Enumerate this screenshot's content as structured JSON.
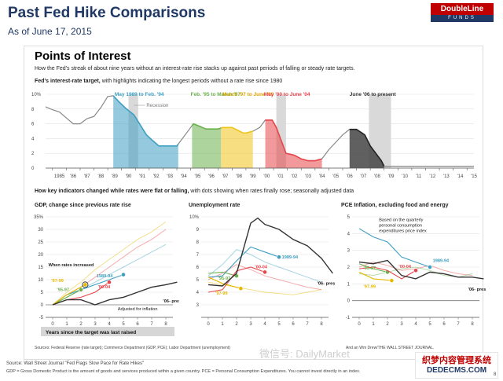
{
  "header": {
    "title": "Past Fed Hike Comparisons",
    "subtitle": "As of June 17, 2015",
    "logo_top": "DoubleLine",
    "logo_bottom": "FUNDS"
  },
  "panel": {
    "heading": "Points of Interest",
    "subheading": "How the Fed's streak of about nine years without an interest-rate rise stacks up against past periods of falling or steady rate targets.",
    "fed_heading_bold": "Fed's interest-rate target,",
    "fed_heading_rest": " with highlights indicating the longest periods without a rate rise since 1980",
    "indicators_heading_bold": "How key indicators changed while rates were flat or falling,",
    "indicators_heading_rest": " with dots showing when rates finally rose; seasonally adjusted data",
    "sources": "Sources: Federal Reserve (rate target); Commerce Department (GDP, PCE); Labor Department (unemployment)",
    "credit": "And an Wm Drew/THE WALL STREET JOURNAL."
  },
  "footer": {
    "source": "Source: Wall Street Journal \"Fed Flags Slow Pace for Rate Hikes\"",
    "note": "GDP = Gross Domestic Product is the amount of goods and services produced within a given country. PCE = Personal Consumption Expenditures. You cannot invest directly in an index.",
    "page": "8"
  },
  "watermark": "微信号: DailyMarket",
  "stamp": {
    "line1": "织梦内容管理系统",
    "line2": "DEDECMS.COM"
  },
  "colors": {
    "may89": "#3e9fc2",
    "feb95": "#6ab04c",
    "mar97": "#f0c419",
    "may00": "#e8454a",
    "jun06": "#444444",
    "recession": "#d9d9d9",
    "fed_line": "#888888"
  },
  "chart_data": [
    {
      "type": "line",
      "title": "",
      "ylabel": "",
      "ylim": [
        0,
        10
      ],
      "yticks": [
        "10%",
        "8",
        "6",
        "4",
        "2",
        "0"
      ],
      "xticks": [
        "1985",
        "'86",
        "'87",
        "'88",
        "'89",
        "'90",
        "'91",
        "'92",
        "'93",
        "'94",
        "'95",
        "'96",
        "'97",
        "'98",
        "'99",
        "'00",
        "'01",
        "'02",
        "'03",
        "'04",
        "'05",
        "'06",
        "'07",
        "'08",
        "'09",
        "'10",
        "'11",
        "'12",
        "'13",
        "'14",
        "'15"
      ],
      "annotations": {
        "recession": "Recession",
        "may89": "May 1989 to Feb. '94",
        "feb95": "Feb. '95 to March '97",
        "mar97": "March '97 to June '99",
        "may00": "May '00 to June '04",
        "jun06": "June '06 to present"
      },
      "series": [
        {
          "x": [
            1984.5,
            1985.0,
            1985.5,
            1986.0,
            1986.5,
            1987.0,
            1987.5,
            1988.0,
            1988.5,
            1989.0,
            1989.4,
            1989.8,
            1990.3,
            1990.9,
            1991.3,
            1991.8,
            1992.2,
            1992.7,
            1993.5,
            1994.0,
            1994.2,
            1994.6,
            1995.0,
            1995.2,
            1995.6,
            1996.1,
            1996.5,
            1997.0,
            1997.3,
            1998.0,
            1998.8,
            1999.0,
            1999.5,
            2000.0,
            2000.4,
            2000.9,
            2001.2,
            2001.5,
            2001.9,
            2002.5,
            2003.0,
            2003.5,
            2004.0,
            2004.5,
            2005.0,
            2005.5,
            2006.0,
            2006.5,
            2007.0,
            2007.6,
            2008.0,
            2008.3,
            2008.8,
            2009.0,
            2015.5
          ],
          "values": [
            8.3,
            7.9,
            7.6,
            6.8,
            6.0,
            6.0,
            6.7,
            7.0,
            8.2,
            9.7,
            9.8,
            9.0,
            8.1,
            7.2,
            6.0,
            4.5,
            3.8,
            3.0,
            3.0,
            3.0,
            3.5,
            4.5,
            5.5,
            6.0,
            5.7,
            5.3,
            5.3,
            5.3,
            5.5,
            5.5,
            4.75,
            4.75,
            5.0,
            5.5,
            6.5,
            6.5,
            5.5,
            4.0,
            2.0,
            1.75,
            1.25,
            1.0,
            1.0,
            1.25,
            2.5,
            3.5,
            4.5,
            5.25,
            5.25,
            4.5,
            3.0,
            2.25,
            1.0,
            0.25,
            0.25
          ]
        }
      ]
    },
    {
      "type": "line",
      "title": "GDP, change since previous rate rise",
      "ylim": [
        -5,
        35
      ],
      "yticks": [
        "35%",
        "30",
        "25",
        "20",
        "15",
        "10",
        "5",
        "0",
        "-5"
      ],
      "xticks": [
        "0",
        "1",
        "2",
        "3",
        "4",
        "5",
        "6",
        "7",
        "8"
      ],
      "xlabel": "Years since the target was last raised",
      "annotations": {
        "raised": "When rates increased",
        "adjusted": "Adjusted for inflation",
        "present": "'06- present"
      },
      "series": [
        {
          "name": "1989-94",
          "x": [
            0,
            1,
            2,
            3,
            4,
            5
          ],
          "values": [
            0,
            4,
            6,
            8,
            10,
            12
          ]
        },
        {
          "name": "'95-97",
          "x": [
            0,
            1,
            2
          ],
          "values": [
            0,
            3,
            6
          ]
        },
        {
          "name": "'97-99",
          "x": [
            0,
            1,
            2.3
          ],
          "values": [
            0,
            4,
            8
          ]
        },
        {
          "name": "'00-04",
          "x": [
            0,
            1,
            2,
            3,
            4
          ],
          "values": [
            0,
            2,
            3,
            5,
            9
          ]
        },
        {
          "name": "'06- present",
          "x": [
            0,
            1,
            2,
            3,
            4,
            5,
            6,
            7,
            8,
            8.8
          ],
          "values": [
            0,
            2,
            2,
            0,
            2,
            3,
            5,
            7,
            8,
            9
          ]
        }
      ]
    },
    {
      "type": "line",
      "title": "Unemployment rate",
      "ylim": [
        2,
        10
      ],
      "yticks": [
        "10%",
        "9",
        "8",
        "7",
        "6",
        "5",
        "4",
        "3"
      ],
      "xticks": [
        "0",
        "1",
        "2",
        "3",
        "4",
        "5",
        "6",
        "7",
        "8"
      ],
      "annotations": {
        "present": "'06- present"
      },
      "series": [
        {
          "name": "1989-94",
          "x": [
            0,
            1,
            2,
            3,
            4,
            5
          ],
          "values": [
            5.2,
            5.3,
            6.5,
            7.6,
            7.2,
            6.8
          ]
        },
        {
          "name": "'95-97",
          "x": [
            0,
            1,
            2
          ],
          "values": [
            5.5,
            5.6,
            5.3
          ]
        },
        {
          "name": "'97-99",
          "x": [
            0,
            1,
            2.3
          ],
          "values": [
            5.2,
            4.7,
            4.3
          ]
        },
        {
          "name": "'00-04",
          "x": [
            0,
            1,
            2,
            3,
            4
          ],
          "values": [
            4.0,
            4.2,
            5.7,
            6.0,
            5.6
          ]
        },
        {
          "name": "'06- present",
          "x": [
            0,
            1,
            2,
            3,
            3.5,
            4,
            5,
            6,
            7,
            8,
            8.8
          ],
          "values": [
            4.6,
            4.5,
            5.5,
            9.5,
            9.9,
            9.4,
            9.0,
            8.2,
            7.7,
            6.7,
            5.5
          ]
        }
      ]
    },
    {
      "type": "line",
      "title": "PCE Inflation, excluding food and energy",
      "ylim": [
        -1,
        5
      ],
      "yticks": [
        "5",
        "4",
        "3",
        "2",
        "1",
        "0",
        "-1"
      ],
      "xticks": [
        "0",
        "1",
        "2",
        "3",
        "4",
        "5",
        "6",
        "7",
        "8"
      ],
      "annotations": {
        "note": "Based on the quarterly personal consumption expenditures price index",
        "present": "'06- present"
      },
      "series": [
        {
          "name": "1989-94",
          "x": [
            0,
            1,
            2,
            3,
            4,
            5
          ],
          "values": [
            4.3,
            3.8,
            3.5,
            2.6,
            2.3,
            2.0
          ]
        },
        {
          "name": "'95-97",
          "x": [
            0,
            1,
            2
          ],
          "values": [
            2.2,
            1.9,
            1.7
          ]
        },
        {
          "name": "'97-99",
          "x": [
            0,
            1,
            2.3
          ],
          "values": [
            1.7,
            1.3,
            1.2
          ]
        },
        {
          "name": "'00-04",
          "x": [
            0,
            1,
            2,
            3,
            4
          ],
          "values": [
            1.9,
            2.0,
            1.8,
            1.3,
            1.8
          ]
        },
        {
          "name": "'06- present",
          "x": [
            0,
            1,
            2,
            3,
            4,
            5,
            6,
            7,
            8,
            8.8
          ],
          "values": [
            2.3,
            2.2,
            2.4,
            1.5,
            1.3,
            1.7,
            1.6,
            1.4,
            1.4,
            1.3
          ]
        }
      ]
    }
  ]
}
